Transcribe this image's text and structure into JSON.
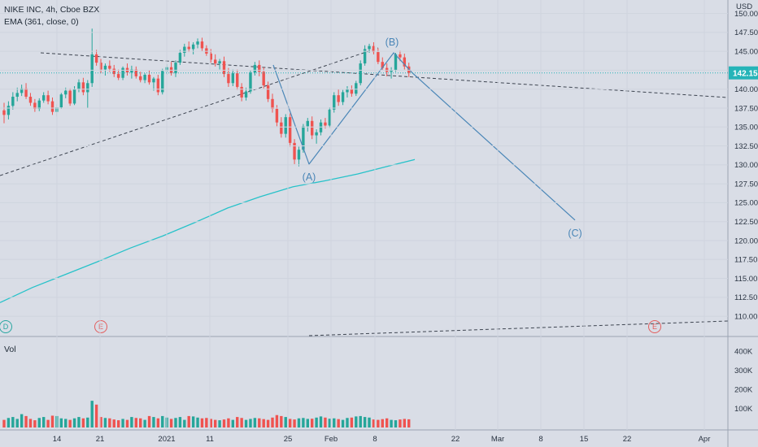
{
  "header": {
    "title": "NIKE INC, 4h, Cboe BZX",
    "indicator": "EMA (361, close, 0)"
  },
  "currency": "USD",
  "last_price": "142.15",
  "volume_pane": {
    "label": "Vol"
  },
  "colors": {
    "background": "#d9dde6",
    "up": "#26a69a",
    "down": "#ef5350",
    "ema": "#27c2c9",
    "wave": "#4a86b7",
    "trendline": "#3d4450",
    "price_line": "#25b4b8"
  },
  "wave_labels": [
    "(A)",
    "(B)",
    "(C)"
  ],
  "event_badges": [
    {
      "letter": "D",
      "color": "#27a6a0"
    },
    {
      "letter": "E",
      "color": "#e35d5d"
    },
    {
      "letter": "E",
      "color": "#e35d5d"
    }
  ],
  "chart_data": [
    {
      "type": "candlestick",
      "title": "NIKE INC, 4h, Cboe BZX",
      "y_axis_label": "USD",
      "y_ticks": [
        "150.00",
        "147.50",
        "145.00",
        "142.50",
        "140.00",
        "137.50",
        "135.00",
        "132.50",
        "130.00",
        "127.50",
        "125.00",
        "122.50",
        "120.00",
        "117.50",
        "115.00",
        "112.50",
        "110.00"
      ],
      "ylim": [
        108.4,
        150.6
      ],
      "x_ticks": [
        "14",
        "21",
        "2021",
        "11",
        "25",
        "Feb",
        "8",
        "22",
        "Mar",
        "8",
        "15",
        "22",
        "Apr"
      ],
      "ohlc": [
        [
          137.2,
          138.2,
          135.5,
          136.6
        ],
        [
          136.6,
          138.4,
          136.0,
          137.8
        ],
        [
          137.8,
          139.6,
          137.3,
          139.0
        ],
        [
          139.0,
          140.2,
          138.4,
          139.5
        ],
        [
          139.5,
          140.6,
          139.1,
          140.1
        ],
        [
          140.1,
          140.8,
          138.7,
          139.0
        ],
        [
          139.0,
          139.5,
          137.8,
          138.2
        ],
        [
          138.2,
          138.7,
          137.0,
          137.4
        ],
        [
          137.4,
          138.8,
          137.1,
          138.5
        ],
        [
          138.5,
          139.6,
          138.2,
          139.2
        ],
        [
          139.2,
          139.8,
          138.0,
          138.4
        ],
        [
          138.4,
          138.9,
          136.6,
          137.0
        ],
        [
          137.0,
          138.0,
          136.4,
          137.6
        ],
        [
          137.6,
          139.5,
          137.4,
          139.3
        ],
        [
          139.3,
          140.2,
          138.8,
          139.8
        ],
        [
          139.8,
          140.1,
          137.8,
          138.1
        ],
        [
          138.1,
          140.4,
          137.9,
          140.0
        ],
        [
          140.0,
          141.3,
          139.6,
          140.9
        ],
        [
          140.9,
          141.5,
          139.2,
          139.6
        ],
        [
          139.6,
          141.2,
          137.5,
          140.8
        ],
        [
          140.8,
          148.0,
          140.3,
          144.6
        ],
        [
          144.6,
          145.2,
          143.1,
          143.5
        ],
        [
          143.5,
          144.0,
          142.1,
          142.6
        ],
        [
          142.6,
          143.4,
          141.8,
          143.1
        ],
        [
          143.1,
          143.8,
          142.3,
          142.7
        ],
        [
          142.7,
          143.2,
          141.6,
          142.0
        ],
        [
          142.0,
          142.6,
          141.2,
          141.5
        ],
        [
          141.5,
          143.0,
          141.2,
          142.8
        ],
        [
          142.8,
          143.4,
          141.8,
          142.2
        ],
        [
          142.2,
          143.1,
          141.4,
          142.6
        ],
        [
          142.6,
          143.0,
          141.4,
          141.7
        ],
        [
          141.7,
          142.3,
          140.9,
          141.2
        ],
        [
          141.2,
          142.1,
          140.8,
          141.9
        ],
        [
          141.9,
          142.5,
          140.6,
          140.9
        ],
        [
          140.9,
          141.6,
          139.8,
          141.4
        ],
        [
          141.4,
          141.9,
          139.2,
          139.6
        ],
        [
          139.6,
          142.7,
          139.3,
          142.4
        ],
        [
          142.4,
          143.3,
          141.9,
          142.9
        ],
        [
          142.9,
          143.6,
          141.8,
          142.1
        ],
        [
          142.1,
          143.8,
          141.6,
          143.5
        ],
        [
          143.5,
          145.2,
          143.2,
          144.8
        ],
        [
          144.8,
          146.0,
          144.3,
          145.6
        ],
        [
          145.6,
          146.3,
          144.9,
          145.3
        ],
        [
          145.3,
          146.2,
          144.6,
          145.9
        ],
        [
          145.9,
          146.7,
          145.4,
          146.3
        ],
        [
          146.3,
          146.8,
          145.0,
          145.4
        ],
        [
          145.4,
          145.8,
          144.4,
          144.7
        ],
        [
          144.7,
          145.3,
          143.5,
          143.9
        ],
        [
          143.9,
          144.6,
          143.0,
          143.4
        ],
        [
          143.4,
          144.0,
          142.6,
          143.7
        ],
        [
          143.7,
          144.3,
          141.6,
          142.0
        ],
        [
          142.0,
          142.8,
          140.3,
          140.8
        ],
        [
          140.8,
          142.6,
          140.4,
          142.1
        ],
        [
          142.1,
          142.6,
          139.9,
          140.3
        ],
        [
          140.3,
          140.8,
          138.4,
          138.9
        ],
        [
          138.9,
          140.2,
          138.5,
          139.7
        ],
        [
          139.7,
          142.5,
          139.4,
          142.2
        ],
        [
          142.2,
          143.6,
          141.8,
          143.2
        ],
        [
          143.2,
          143.8,
          141.7,
          142.3
        ],
        [
          142.3,
          142.9,
          140.1,
          140.5
        ],
        [
          140.5,
          141.0,
          138.3,
          138.7
        ],
        [
          138.7,
          139.4,
          136.9,
          137.4
        ],
        [
          137.4,
          137.9,
          135.1,
          135.6
        ],
        [
          135.6,
          136.3,
          133.6,
          134.1
        ],
        [
          134.1,
          136.7,
          133.6,
          136.3
        ],
        [
          136.3,
          136.8,
          132.4,
          132.9
        ],
        [
          132.9,
          133.4,
          130.1,
          130.7
        ],
        [
          130.7,
          132.4,
          129.8,
          132.0
        ],
        [
          132.0,
          135.4,
          131.6,
          135.1
        ],
        [
          135.1,
          136.2,
          134.4,
          135.8
        ],
        [
          135.8,
          136.4,
          133.4,
          133.9
        ],
        [
          133.9,
          134.7,
          132.8,
          134.3
        ],
        [
          134.3,
          136.0,
          133.9,
          135.6
        ],
        [
          135.6,
          136.2,
          134.8,
          135.2
        ],
        [
          135.2,
          137.6,
          134.9,
          137.3
        ],
        [
          137.3,
          139.6,
          136.9,
          139.2
        ],
        [
          139.2,
          140.0,
          137.8,
          138.3
        ],
        [
          138.3,
          139.9,
          137.9,
          139.6
        ],
        [
          139.6,
          140.4,
          138.9,
          140.0
        ],
        [
          140.0,
          140.5,
          139.0,
          139.4
        ],
        [
          139.4,
          141.1,
          139.1,
          140.8
        ],
        [
          140.8,
          143.8,
          140.5,
          143.4
        ],
        [
          143.4,
          145.8,
          143.1,
          145.3
        ],
        [
          145.3,
          146.0,
          144.8,
          145.7
        ],
        [
          145.7,
          146.2,
          144.6,
          144.9
        ],
        [
          144.9,
          145.4,
          143.3,
          143.6
        ],
        [
          143.6,
          144.2,
          142.5,
          142.8
        ],
        [
          142.8,
          143.4,
          141.7,
          142.3
        ],
        [
          142.3,
          142.9,
          141.4,
          142.5
        ],
        [
          142.5,
          144.8,
          142.3,
          144.6
        ],
        [
          144.6,
          145.1,
          143.7,
          144.2
        ],
        [
          144.2,
          144.7,
          142.6,
          143.0
        ],
        [
          143.0,
          143.5,
          141.6,
          142.15
        ]
      ],
      "volume_ticks": [
        "400K",
        "300K",
        "200K",
        "100K"
      ],
      "volume_ylim": [
        0,
        460000
      ],
      "volume": [
        40000,
        50000,
        55000,
        45000,
        70000,
        60000,
        45000,
        38000,
        50000,
        55000,
        40000,
        62000,
        60000,
        48000,
        45000,
        40000,
        48000,
        55000,
        48000,
        52000,
        140000,
        120000,
        55000,
        50000,
        48000,
        42000,
        38000,
        45000,
        40000,
        55000,
        50000,
        48000,
        40000,
        60000,
        55000,
        48000,
        60000,
        52000,
        45000,
        50000,
        55000,
        40000,
        60000,
        58000,
        52000,
        48000,
        50000,
        45000,
        40000,
        38000,
        42000,
        48000,
        40000,
        55000,
        50000,
        40000,
        45000,
        50000,
        48000,
        44000,
        40000,
        52000,
        65000,
        60000,
        55000,
        45000,
        42000,
        48000,
        50000,
        45000,
        46000,
        52000,
        58000,
        52000,
        46000,
        48000,
        44000,
        40000,
        50000,
        52000,
        58000,
        60000,
        55000,
        52000,
        42000,
        40000,
        44000,
        48000,
        40000,
        38000,
        42000,
        45000,
        43000
      ],
      "ema": {
        "name": "EMA (361, close, 0)",
        "points": [
          [
            0,
            111.8
          ],
          [
            40,
            113.8
          ],
          [
            80,
            115.5
          ],
          [
            120,
            117.2
          ],
          [
            160,
            119.0
          ],
          [
            200,
            120.6
          ],
          [
            240,
            122.4
          ],
          [
            280,
            124.3
          ],
          [
            320,
            125.8
          ],
          [
            360,
            127.1
          ],
          [
            400,
            127.9
          ],
          [
            440,
            128.8
          ],
          [
            480,
            129.9
          ],
          [
            510,
            130.7
          ]
        ]
      },
      "wave_points": [
        {
          "label": "(A)",
          "price": 130.1
        },
        {
          "label": "(B)",
          "price": 144.8
        },
        {
          "label": "(C)",
          "price": 122.7
        }
      ],
      "annotations": [
        "(A)",
        "(B)",
        "(C)"
      ]
    }
  ]
}
